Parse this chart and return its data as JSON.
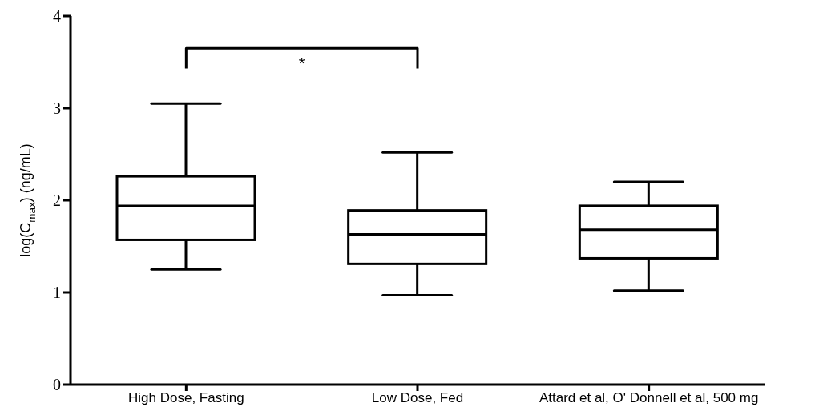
{
  "chart_data": {
    "type": "box",
    "ylabel": "log(C$_{max}$) (ng/mL)",
    "categories": [
      "High Dose, Fasting",
      "Low Dose, Fed",
      "Attard et al, O' Donnell et al, 500 mg"
    ],
    "boxes": [
      {
        "low": 1.25,
        "q1": 1.57,
        "median": 1.94,
        "q3": 2.26,
        "high": 3.05
      },
      {
        "low": 0.97,
        "q1": 1.31,
        "median": 1.63,
        "q3": 1.89,
        "high": 2.52
      },
      {
        "low": 1.02,
        "q1": 1.37,
        "median": 1.68,
        "q3": 1.94,
        "high": 2.2
      }
    ],
    "ylim": [
      0,
      4
    ],
    "yticks": [
      0,
      1,
      2,
      3,
      4
    ],
    "annotations": [
      "*"
    ]
  }
}
